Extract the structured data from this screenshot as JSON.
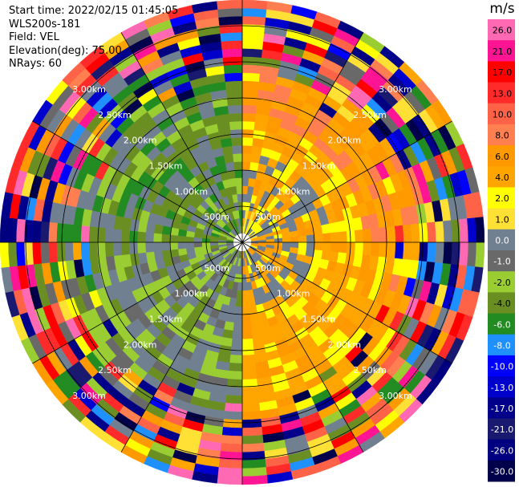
{
  "info": {
    "start_time": "Start time: 2022/02/15 01:45:05",
    "instrument": "WLS200s-181",
    "field": "Field: VEL",
    "elevation": "Elevation(deg): 75.00",
    "nrays": "NRays: 60"
  },
  "chart_data": {
    "type": "heatmap",
    "projection": "polar",
    "title": "",
    "colorbar": {
      "unit": "m/s",
      "ticks": [
        "26.0",
        "21.0",
        "17.0",
        "13.0",
        "10.0",
        "8.0",
        "6.0",
        "4.0",
        "2.0",
        "1.0",
        "0.0",
        "-1.0",
        "-2.0",
        "-4.0",
        "-6.0",
        "-8.0",
        "-10.0",
        "-13.0",
        "-17.0",
        "-21.0",
        "-26.0",
        "-30.0"
      ],
      "colors": [
        "#ff69b4",
        "#ff1493",
        "#ff0000",
        "#ff2a2a",
        "#ff6347",
        "#ff7f50",
        "#ff9900",
        "#ffa500",
        "#ffff00",
        "#ffe135",
        "#708090",
        "#696969",
        "#9acd32",
        "#6b8e23",
        "#228b22",
        "#1e90ff",
        "#0000ff",
        "#0000cd",
        "#00008b",
        "#191970",
        "#000080",
        "#00004b"
      ]
    },
    "range_rings_km": [
      "500m",
      "1.00km",
      "1.50km",
      "2.00km",
      "2.50km",
      "3.00km"
    ],
    "max_range_km": 3.1,
    "rays": 60,
    "gates": 30,
    "sectors": [
      {
        "name": "north-east",
        "az_range": [
          0,
          90
        ],
        "dominant": "positive (yellow/orange)"
      },
      {
        "name": "south-east",
        "az_range": [
          90,
          180
        ],
        "dominant": "positive (orange) near, mixed far"
      },
      {
        "name": "south-west",
        "az_range": [
          180,
          270
        ],
        "dominant": "negative (green/grey)"
      },
      {
        "name": "north-west",
        "az_range": [
          270,
          360
        ],
        "dominant": "negative (green/grey)"
      }
    ]
  }
}
